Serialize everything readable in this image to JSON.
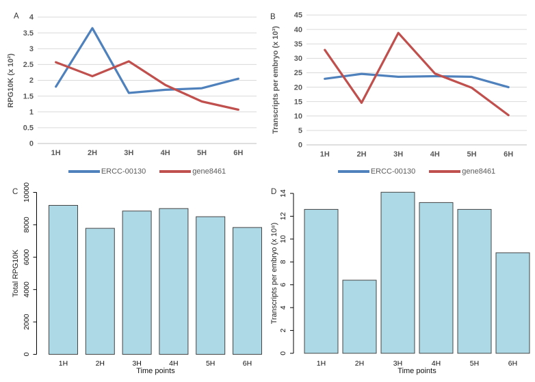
{
  "figure_background": "#ffffff",
  "chart_data": [
    {
      "panel": "A",
      "type": "line",
      "ylabel": "RPG10K (x 10²)",
      "categories": [
        "1H",
        "2H",
        "3H",
        "4H",
        "5H",
        "6H"
      ],
      "ylim": [
        0,
        4
      ],
      "yticks": [
        0,
        0.5,
        1,
        1.5,
        2,
        2.5,
        3,
        3.5,
        4
      ],
      "grid": true,
      "legend_position": "bottom",
      "series": [
        {
          "name": "ERCC-00130",
          "color": "#4F81BD",
          "values": [
            1.8,
            3.65,
            1.6,
            1.7,
            1.75,
            2.05
          ]
        },
        {
          "name": "gene8461",
          "color": "#C0504D",
          "values": [
            2.57,
            2.13,
            2.6,
            1.85,
            1.33,
            1.07
          ]
        }
      ],
      "gridline_color": "#D9D9D9",
      "axis_line_color": "#BFBFBF"
    },
    {
      "panel": "B",
      "type": "line",
      "ylabel": "Transcripts per embryo (x 10³)",
      "categories": [
        "1H",
        "2H",
        "3H",
        "4H",
        "5H",
        "6H"
      ],
      "ylim": [
        0,
        45
      ],
      "yticks": [
        0,
        5,
        10,
        15,
        20,
        25,
        30,
        35,
        40,
        45
      ],
      "grid": true,
      "legend_position": "bottom",
      "series": [
        {
          "name": "ERCC-00130",
          "color": "#4F81BD",
          "values": [
            22.9,
            24.6,
            23.6,
            23.8,
            23.6,
            20
          ]
        },
        {
          "name": "gene8461",
          "color": "#C0504D",
          "values": [
            32.9,
            14.6,
            38.8,
            24.7,
            19.8,
            10.3
          ]
        }
      ],
      "gridline_color": "#D9D9D9",
      "axis_line_color": "#BFBFBF"
    },
    {
      "panel": "C",
      "type": "bar",
      "ylabel": "Total RPG10K",
      "xlabel": "Time points",
      "categories": [
        "1H",
        "2H",
        "3H",
        "4H",
        "5H",
        "6H"
      ],
      "ylim": [
        0,
        10000
      ],
      "yticks": [
        0,
        2000,
        4000,
        6000,
        8000,
        10000
      ],
      "grid": false,
      "values": [
        9200,
        7780,
        8850,
        9000,
        8500,
        7830
      ],
      "bar_color": "#ADD8E6",
      "bar_border": "#444444"
    },
    {
      "panel": "D",
      "type": "bar",
      "ylabel": "Transcripts per embryo (x 10⁸)",
      "xlabel": "Time points",
      "categories": [
        "1H",
        "2H",
        "3H",
        "4H",
        "5H",
        "6H"
      ],
      "ylim": [
        0,
        14
      ],
      "yticks": [
        0,
        2,
        4,
        6,
        8,
        10,
        12,
        14
      ],
      "grid": false,
      "values": [
        12.6,
        6.4,
        14.1,
        13.2,
        12.6,
        8.8
      ],
      "bar_color": "#ADD8E6",
      "bar_border": "#444444"
    }
  ]
}
